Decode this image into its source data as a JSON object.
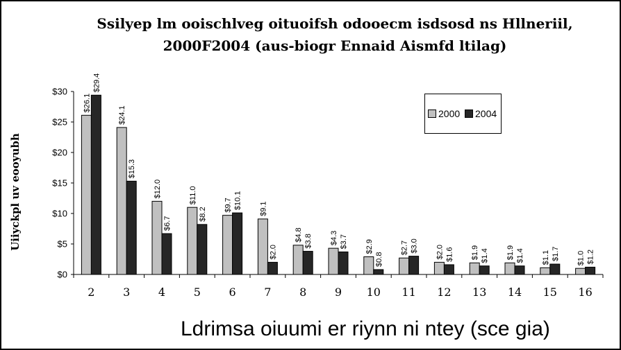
{
  "chart_data": {
    "type": "bar",
    "title": [
      "Ssilyep lm ooischlveg oituoifsh odooecm isdsosd ns Hllneriil,",
      "2000F2004 (aus-biogr Ennaid Aismfd ltilag)"
    ],
    "xlabel": "Ldrimsa oiuumi er riynn ni ntey (sce gia)",
    "ylabel": "Uiiyckpl uv eooyubh",
    "ylim": [
      0,
      30
    ],
    "yticks": [
      "$0",
      "$5",
      "$10",
      "$15",
      "$20",
      "$25",
      "$30"
    ],
    "categories": [
      "2",
      "3",
      "4",
      "5",
      "6",
      "7",
      "8",
      "9",
      "10",
      "11",
      "12",
      "13",
      "14",
      "15",
      "16"
    ],
    "series": [
      {
        "name": "2000",
        "color": "#c0c0c0",
        "values": [
          26.1,
          24.1,
          12.0,
          11.0,
          9.7,
          9.1,
          4.8,
          4.3,
          2.9,
          2.7,
          2.0,
          1.9,
          1.9,
          1.1,
          1.0
        ],
        "labels": [
          "$26.1",
          "$24.1",
          "$12.0",
          "$11.0",
          "$9.7",
          "$9.1",
          "$4.8",
          "$4.3",
          "$2.9",
          "$2.7",
          "$2.0",
          "$1.9",
          "$1.9",
          "$1.1",
          "$1.0"
        ]
      },
      {
        "name": "2004",
        "color": "#262626",
        "values": [
          29.4,
          15.3,
          6.7,
          8.2,
          10.1,
          2.0,
          3.8,
          3.7,
          0.8,
          3.0,
          1.6,
          1.4,
          1.4,
          1.7,
          1.2
        ],
        "labels": [
          "$29.4",
          "$15.3",
          "$6.7",
          "$8.2",
          "$10.1",
          "$2.0",
          "$3.8",
          "$3.7",
          "$0.8",
          "$3.0",
          "$1.6",
          "$1.4",
          "$1.4",
          "$1.7",
          "$1.2"
        ]
      }
    ],
    "legend_position": "top-right",
    "grid": false
  }
}
